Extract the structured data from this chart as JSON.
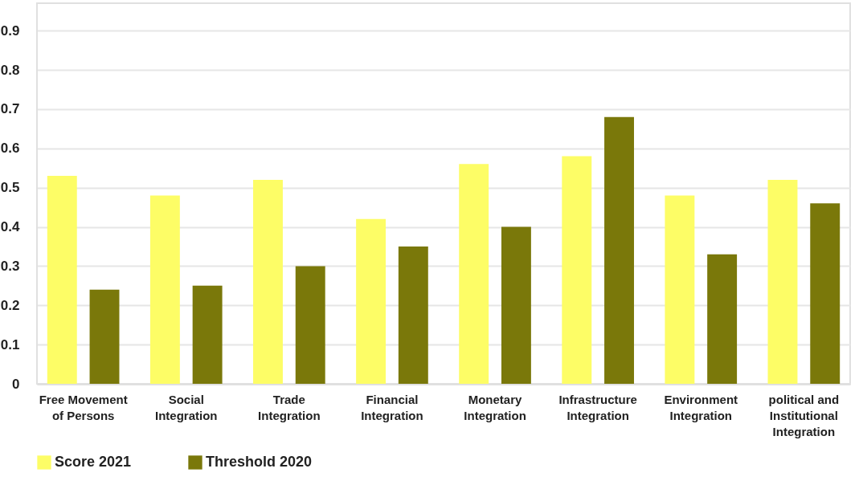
{
  "chart_data": {
    "type": "bar",
    "categories": [
      "Free Movement of Persons",
      "Social Integration",
      "Trade Integration",
      "Financial Integration",
      "Monetary Integration",
      "Infrastructure Integration",
      "Environment Integration",
      "political and Institutional Integration"
    ],
    "series": [
      {
        "name": "Score 2021",
        "color": "#fdfd66",
        "values": [
          0.53,
          0.48,
          0.52,
          0.42,
          0.56,
          0.58,
          0.48,
          0.52
        ]
      },
      {
        "name": "Threshold 2020",
        "color": "#7a780a",
        "values": [
          0.24,
          0.25,
          0.3,
          0.35,
          0.4,
          0.68,
          0.33,
          0.46
        ]
      }
    ],
    "ylim": [
      0,
      0.97
    ],
    "yticks": [
      0,
      0.1,
      0.2,
      0.3,
      0.4,
      0.5,
      0.6,
      0.7,
      0.8,
      0.9
    ],
    "grid": "y",
    "legend": "bottom"
  }
}
